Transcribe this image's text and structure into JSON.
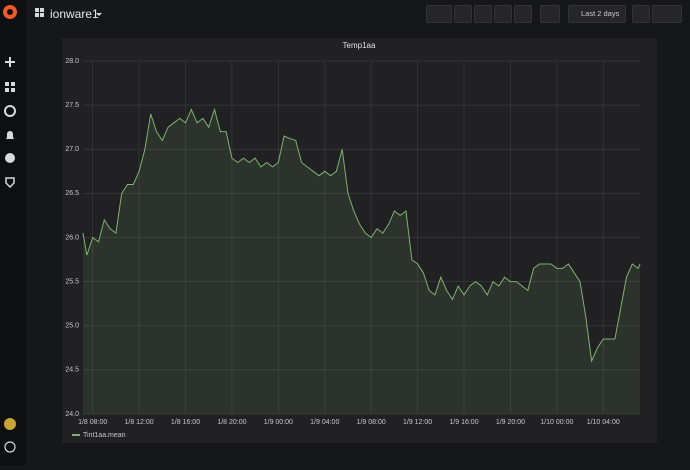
{
  "header": {
    "dashboard_title": "ionware1",
    "time_range": "Last 2 days"
  },
  "chart_data": {
    "type": "line",
    "title": "Temp1aa",
    "x": [
      "1/8 07:10",
      "1/8 07:30",
      "1/8 08:00",
      "1/8 08:30",
      "1/8 09:00",
      "1/8 09:30",
      "1/8 10:00",
      "1/8 10:30",
      "1/8 11:00",
      "1/8 11:30",
      "1/8 12:00",
      "1/8 12:30",
      "1/8 13:00",
      "1/8 13:30",
      "1/8 14:00",
      "1/8 14:30",
      "1/8 15:00",
      "1/8 15:30",
      "1/8 16:00",
      "1/8 16:30",
      "1/8 17:00",
      "1/8 17:30",
      "1/8 18:00",
      "1/8 18:30",
      "1/8 19:00",
      "1/8 19:30",
      "1/8 20:00",
      "1/8 20:30",
      "1/8 21:00",
      "1/8 21:30",
      "1/8 22:00",
      "1/8 22:30",
      "1/8 23:00",
      "1/8 23:30",
      "1/9 00:00",
      "1/9 00:30",
      "1/9 01:00",
      "1/9 01:30",
      "1/9 02:00",
      "1/9 02:30",
      "1/9 03:00",
      "1/9 03:30",
      "1/9 04:00",
      "1/9 04:30",
      "1/9 05:00",
      "1/9 05:30",
      "1/9 06:00",
      "1/9 06:30",
      "1/9 07:00",
      "1/9 07:30",
      "1/9 08:00",
      "1/9 08:30",
      "1/9 09:00",
      "1/9 09:30",
      "1/9 10:00",
      "1/9 10:30",
      "1/9 11:00",
      "1/9 11:30",
      "1/9 12:00",
      "1/9 12:30",
      "1/9 13:00",
      "1/9 13:30",
      "1/9 14:00",
      "1/9 14:30",
      "1/9 15:00",
      "1/9 15:30",
      "1/9 16:00",
      "1/9 16:30",
      "1/9 17:00",
      "1/9 17:30",
      "1/9 18:00",
      "1/9 18:30",
      "1/9 19:00",
      "1/9 19:30",
      "1/9 20:00",
      "1/9 20:30",
      "1/9 21:00",
      "1/9 21:30",
      "1/9 22:00",
      "1/9 22:30",
      "1/9 23:00",
      "1/9 23:30",
      "1/10 00:00",
      "1/10 00:30",
      "1/10 01:00",
      "1/10 01:30",
      "1/10 02:00",
      "1/10 02:30",
      "1/10 03:00",
      "1/10 03:30",
      "1/10 04:00",
      "1/10 04:30",
      "1/10 05:00",
      "1/10 05:30",
      "1/10 06:00",
      "1/10 06:30",
      "1/10 07:00",
      "1/10 07:10"
    ],
    "series": [
      {
        "name": "Tint1aa.mean",
        "color": "#7eb26d",
        "values": [
          26.05,
          25.8,
          26.0,
          25.95,
          26.2,
          26.1,
          26.05,
          26.5,
          26.6,
          26.6,
          26.75,
          27.0,
          27.4,
          27.2,
          27.1,
          27.25,
          27.3,
          27.35,
          27.3,
          27.45,
          27.3,
          27.35,
          27.25,
          27.45,
          27.2,
          27.2,
          26.9,
          26.85,
          26.9,
          26.85,
          26.9,
          26.8,
          26.85,
          26.8,
          26.85,
          27.15,
          27.12,
          27.1,
          26.85,
          26.8,
          26.75,
          26.7,
          26.75,
          26.7,
          26.75,
          27.0,
          26.5,
          26.3,
          26.15,
          26.05,
          26.0,
          26.1,
          26.05,
          26.15,
          26.3,
          26.25,
          26.3,
          25.75,
          25.7,
          25.6,
          25.4,
          25.35,
          25.55,
          25.4,
          25.3,
          25.45,
          25.35,
          25.45,
          25.5,
          25.45,
          25.35,
          25.5,
          25.45,
          25.55,
          25.5,
          25.5,
          25.45,
          25.4,
          25.65,
          25.7,
          25.7,
          25.7,
          25.65,
          25.65,
          25.7,
          25.6,
          25.5,
          25.1,
          24.6,
          24.75,
          24.85,
          24.85,
          24.85,
          25.2,
          25.55,
          25.7,
          25.65,
          25.7
        ]
      }
    ],
    "xlim": [
      "1/8 07:10",
      "1/10 07:10"
    ],
    "xticks": [
      "1/8 08:00",
      "1/8 12:00",
      "1/8 16:00",
      "1/8 20:00",
      "1/9 00:00",
      "1/9 04:00",
      "1/9 08:00",
      "1/9 12:00",
      "1/9 16:00",
      "1/9 20:00",
      "1/10 00:00",
      "1/10 04:00"
    ],
    "ylim": [
      24,
      28
    ],
    "yticks": [
      {
        "value": 24,
        "label": "24.0"
      },
      24.5,
      {
        "value": 25,
        "label": "25.0"
      },
      25.5,
      {
        "value": 26,
        "label": "26.0"
      },
      26.5,
      {
        "value": 27,
        "label": "27.0"
      },
      27.5,
      {
        "value": 28,
        "label": "28.0"
      }
    ],
    "grid": true,
    "legend": "bottom-left"
  }
}
